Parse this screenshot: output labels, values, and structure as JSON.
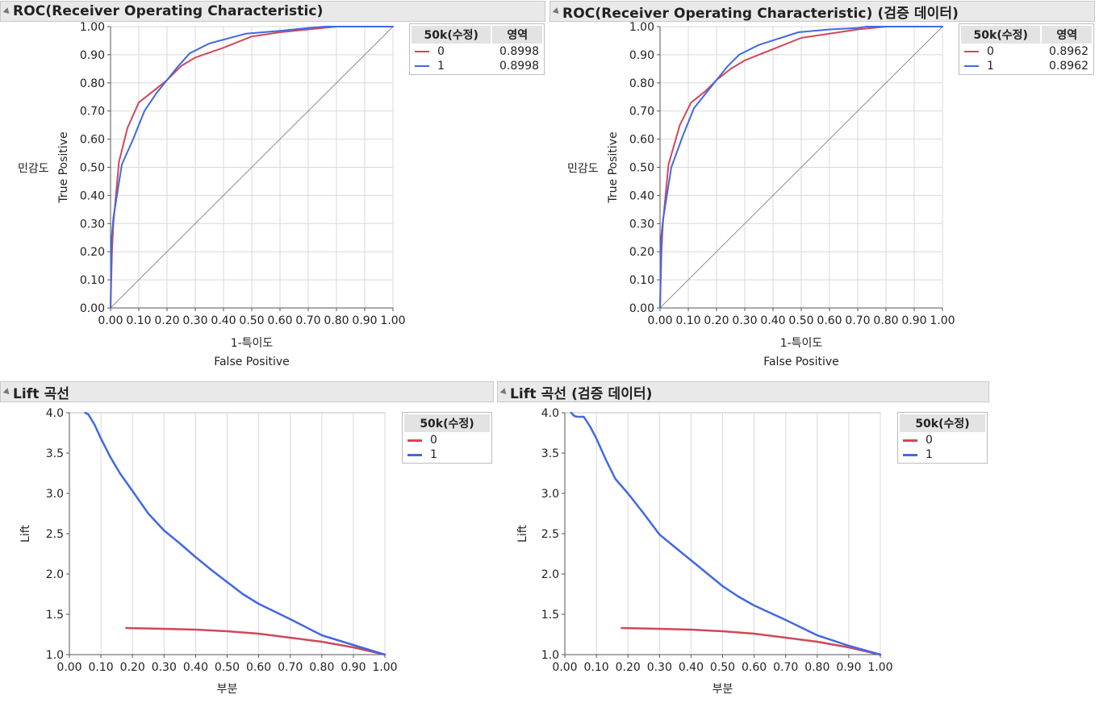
{
  "panels": {
    "roc_train": {
      "title": "ROC(Receiver Operating Characteristic)"
    },
    "roc_valid": {
      "title": "ROC(Receiver Operating Characteristic) (검증 데이터)"
    },
    "lift_train": {
      "title": "Lift 곡선"
    },
    "lift_valid": {
      "title": "Lift 곡선 (검증 데이터)"
    }
  },
  "legends": {
    "roc_train": {
      "header_level": "50k(수정)",
      "header_area": "영역",
      "rows": [
        {
          "level": "0",
          "area": "0.8998"
        },
        {
          "level": "1",
          "area": "0.8998"
        }
      ]
    },
    "roc_valid": {
      "header_level": "50k(수정)",
      "header_area": "영역",
      "rows": [
        {
          "level": "0",
          "area": "0.8962"
        },
        {
          "level": "1",
          "area": "0.8962"
        }
      ]
    },
    "lift_train": {
      "header_level": "50k(수정)",
      "rows": [
        {
          "level": "0"
        },
        {
          "level": "1"
        }
      ]
    },
    "lift_valid": {
      "header_level": "50k(수정)",
      "rows": [
        {
          "level": "0"
        },
        {
          "level": "1"
        }
      ]
    }
  },
  "colors": {
    "series0": "#d0485a",
    "series1": "#4169e1",
    "diagonal": "#8c8c8c",
    "grid": "#d9d9d9"
  },
  "chart_data": [
    {
      "type": "line",
      "title": "ROC(Receiver Operating Characteristic)",
      "xlabel": "1-특이도",
      "xlabel2": "False Positive",
      "ylabel": "민감도",
      "ylabel2": "True Positive",
      "xlim": [
        0,
        1
      ],
      "ylim": [
        0,
        1
      ],
      "xticks": [
        "0.00",
        "0.10",
        "0.20",
        "0.30",
        "0.40",
        "0.50",
        "0.60",
        "0.70",
        "0.80",
        "0.90",
        "1.00"
      ],
      "yticks": [
        "0.00",
        "0.10",
        "0.20",
        "0.30",
        "0.40",
        "0.50",
        "0.60",
        "0.70",
        "0.80",
        "0.90",
        "1.00"
      ],
      "grid": true,
      "legend": "right",
      "diagonal": true,
      "series": [
        {
          "name": "0",
          "x": [
            0,
            0.005,
            0.01,
            0.03,
            0.06,
            0.1,
            0.15,
            0.2,
            0.25,
            0.3,
            0.4,
            0.5,
            0.6,
            0.7,
            0.8,
            0.9,
            1.0
          ],
          "y": [
            0,
            0.2,
            0.3,
            0.52,
            0.64,
            0.73,
            0.77,
            0.81,
            0.86,
            0.89,
            0.925,
            0.965,
            0.98,
            0.99,
            1.0,
            1.0,
            1.0
          ]
        },
        {
          "name": "1",
          "x": [
            0,
            0.004,
            0.01,
            0.04,
            0.08,
            0.12,
            0.16,
            0.2,
            0.24,
            0.28,
            0.35,
            0.48,
            0.6,
            0.7,
            0.76,
            0.9,
            1.0
          ],
          "y": [
            0,
            0.25,
            0.32,
            0.51,
            0.6,
            0.7,
            0.76,
            0.81,
            0.86,
            0.905,
            0.94,
            0.975,
            0.985,
            0.995,
            1.0,
            1.0,
            1.0
          ]
        }
      ]
    },
    {
      "type": "line",
      "title": "ROC(Receiver Operating Characteristic) (검증 데이터)",
      "xlabel": "1-특이도",
      "xlabel2": "False Positive",
      "ylabel": "민감도",
      "ylabel2": "True Positive",
      "xlim": [
        0,
        1
      ],
      "ylim": [
        0,
        1
      ],
      "xticks": [
        "0.00",
        "0.10",
        "0.20",
        "0.30",
        "0.40",
        "0.50",
        "0.60",
        "0.70",
        "0.80",
        "0.90",
        "1.00"
      ],
      "yticks": [
        "0.00",
        "0.10",
        "0.20",
        "0.30",
        "0.40",
        "0.50",
        "0.60",
        "0.70",
        "0.80",
        "0.90",
        "1.00"
      ],
      "grid": true,
      "legend": "right",
      "diagonal": true,
      "series": [
        {
          "name": "0",
          "x": [
            0,
            0.005,
            0.01,
            0.03,
            0.07,
            0.11,
            0.16,
            0.2,
            0.25,
            0.3,
            0.4,
            0.5,
            0.6,
            0.7,
            0.8,
            0.9,
            1.0
          ],
          "y": [
            0,
            0.2,
            0.3,
            0.51,
            0.65,
            0.73,
            0.77,
            0.81,
            0.85,
            0.88,
            0.92,
            0.96,
            0.975,
            0.99,
            1.0,
            1.0,
            1.0
          ]
        },
        {
          "name": "1",
          "x": [
            0,
            0.004,
            0.01,
            0.04,
            0.08,
            0.12,
            0.16,
            0.2,
            0.24,
            0.28,
            0.35,
            0.49,
            0.6,
            0.7,
            0.73,
            0.9,
            1.0
          ],
          "y": [
            0,
            0.25,
            0.31,
            0.5,
            0.61,
            0.71,
            0.76,
            0.81,
            0.86,
            0.9,
            0.935,
            0.98,
            0.99,
            0.995,
            1.0,
            1.0,
            1.0
          ]
        }
      ]
    },
    {
      "type": "line",
      "title": "Lift 곡선",
      "xlabel": "부분",
      "ylabel": "Lift",
      "xlim": [
        0,
        1
      ],
      "ylim": [
        1.0,
        4.0
      ],
      "xticks": [
        "0.00",
        "0.10",
        "0.20",
        "0.30",
        "0.40",
        "0.50",
        "0.60",
        "0.70",
        "0.80",
        "0.90",
        "1.00"
      ],
      "yticks": [
        "1.0",
        "1.5",
        "2.0",
        "2.5",
        "3.0",
        "3.5",
        "4.0"
      ],
      "grid": true,
      "gridAxis": "x",
      "legend": "right",
      "series": [
        {
          "name": "0",
          "x": [
            0.18,
            0.3,
            0.4,
            0.5,
            0.6,
            0.7,
            0.8,
            0.9,
            1.0
          ],
          "y": [
            1.33,
            1.32,
            1.31,
            1.29,
            1.26,
            1.21,
            1.16,
            1.09,
            1.0
          ]
        },
        {
          "name": "1",
          "x": [
            0.05,
            0.06,
            0.08,
            0.1,
            0.13,
            0.16,
            0.2,
            0.25,
            0.3,
            0.35,
            0.4,
            0.45,
            0.5,
            0.55,
            0.6,
            0.7,
            0.8,
            0.9,
            1.0
          ],
          "y": [
            4.0,
            3.98,
            3.85,
            3.68,
            3.45,
            3.25,
            3.03,
            2.75,
            2.54,
            2.38,
            2.21,
            2.05,
            1.9,
            1.75,
            1.63,
            1.44,
            1.24,
            1.12,
            1.0
          ]
        }
      ]
    },
    {
      "type": "line",
      "title": "Lift 곡선 (검증 데이터)",
      "xlabel": "부분",
      "ylabel": "Lift",
      "xlim": [
        0,
        1
      ],
      "ylim": [
        1.0,
        4.0
      ],
      "xticks": [
        "0.00",
        "0.10",
        "0.20",
        "0.30",
        "0.40",
        "0.50",
        "0.60",
        "0.70",
        "0.80",
        "0.90",
        "1.00"
      ],
      "yticks": [
        "1.0",
        "1.5",
        "2.0",
        "2.5",
        "3.0",
        "3.5",
        "4.0"
      ],
      "grid": true,
      "gridAxis": "x",
      "legend": "right",
      "series": [
        {
          "name": "0",
          "x": [
            0.18,
            0.3,
            0.4,
            0.5,
            0.6,
            0.7,
            0.8,
            0.9,
            1.0
          ],
          "y": [
            1.33,
            1.32,
            1.31,
            1.29,
            1.26,
            1.21,
            1.16,
            1.09,
            1.0
          ]
        },
        {
          "name": "1",
          "x": [
            0.02,
            0.03,
            0.04,
            0.06,
            0.08,
            0.1,
            0.13,
            0.16,
            0.2,
            0.25,
            0.3,
            0.35,
            0.4,
            0.45,
            0.5,
            0.55,
            0.6,
            0.7,
            0.8,
            0.9,
            1.0
          ],
          "y": [
            4.0,
            3.96,
            3.95,
            3.95,
            3.83,
            3.68,
            3.42,
            3.18,
            3.0,
            2.75,
            2.49,
            2.33,
            2.17,
            2.01,
            1.85,
            1.72,
            1.61,
            1.43,
            1.24,
            1.11,
            1.0
          ]
        }
      ]
    }
  ]
}
